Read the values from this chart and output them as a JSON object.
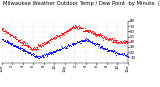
{
  "title": "Milwaukee Weather Outdoor Temp / Dew Point  by Minute  (24 Hours) (Alternate)",
  "bg_color": "#ffffff",
  "plot_bg_color": "#ffffff",
  "temp_color": "#ff0000",
  "dew_color": "#0000ff",
  "grid_color": "#808080",
  "ylim": [
    0,
    80
  ],
  "ytick_vals": [
    10,
    20,
    30,
    40,
    50,
    60,
    70,
    80
  ],
  "title_fontsize": 3.8,
  "tick_fontsize": 2.8,
  "n_points": 1440,
  "seed": 42
}
